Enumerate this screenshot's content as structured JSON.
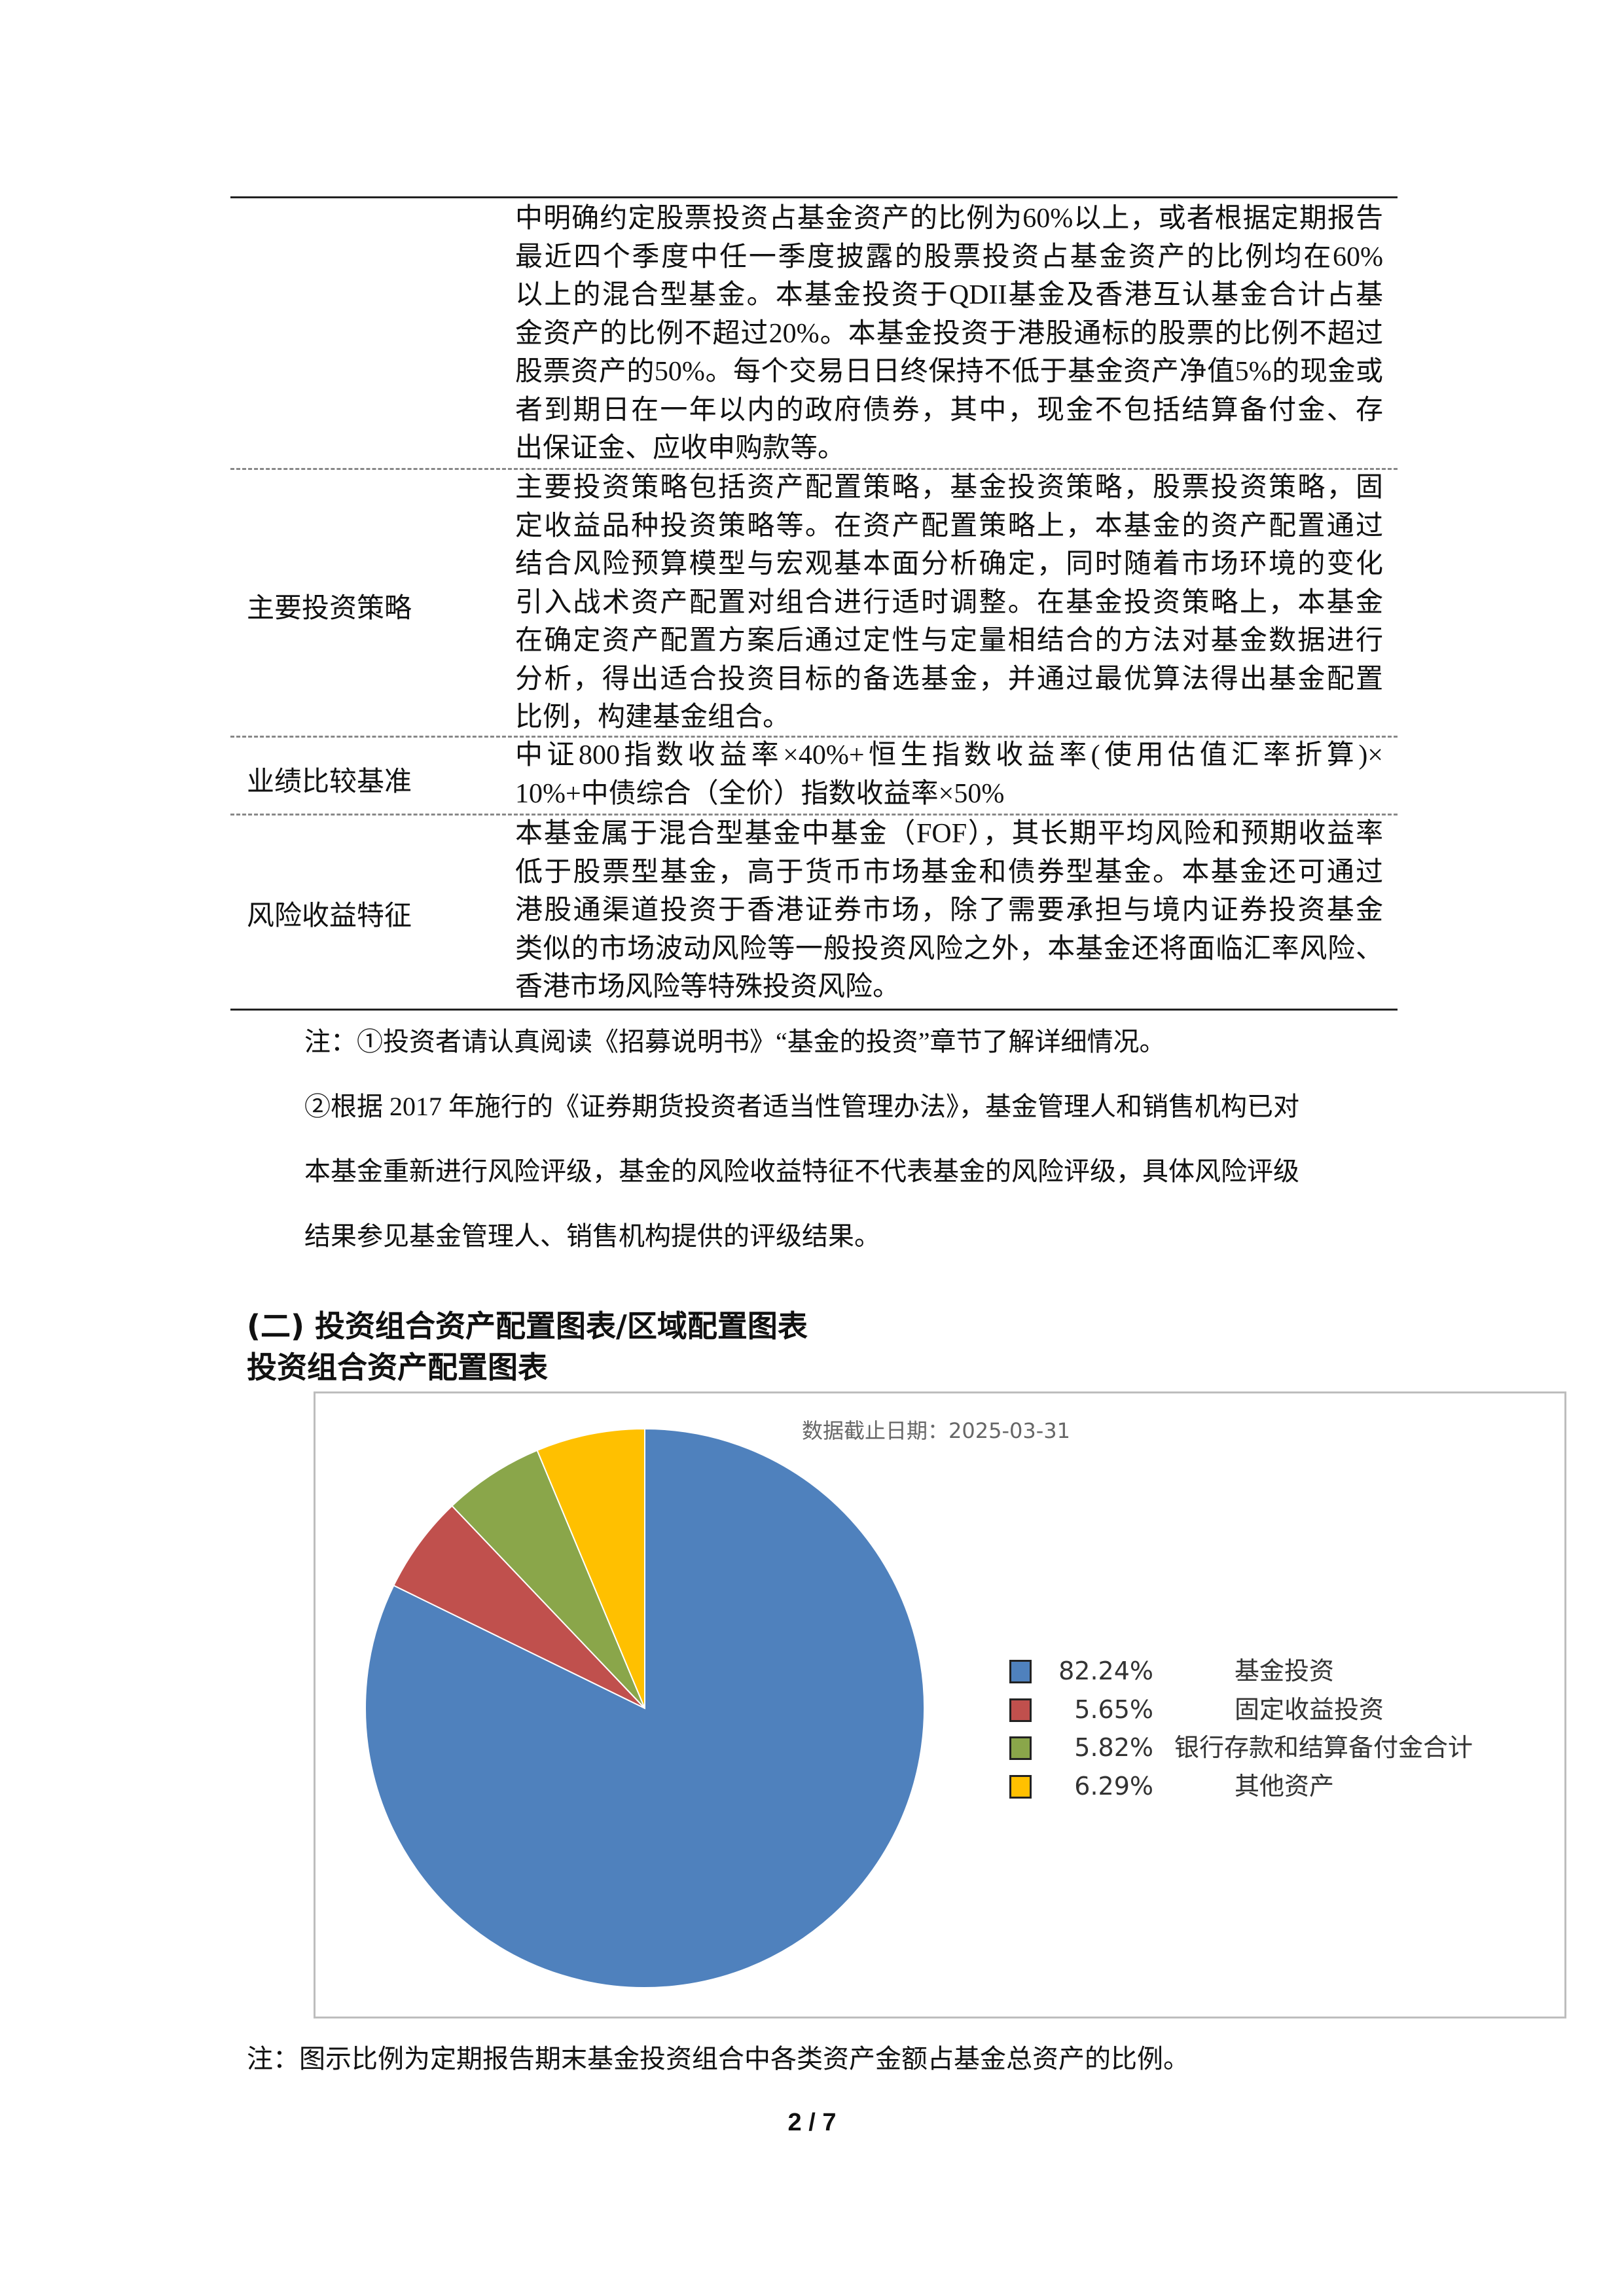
{
  "table": {
    "rows": [
      {
        "label": "",
        "lines": [
          "中明确约定股票投资占基金资产的比例为60%以上，或者根据定期报告",
          "最近四个季度中任一季度披露的股票投资占基金资产的比例均在60%",
          "以上的混合型基金。本基金投资于QDII基金及香港互认基金合计占基",
          "金资产的比例不超过20%。本基金投资于港股通标的股票的比例不超过",
          "股票资产的50%。每个交易日日终保持不低于基金资产净值5%的现金或",
          "者到期日在一年以内的政府债券，其中，现金不包括结算备付金、存",
          "出保证金、应收申购款等。"
        ]
      },
      {
        "label": "主要投资策略",
        "lines": [
          "主要投资策略包括资产配置策略，基金投资策略，股票投资策略，固",
          "定收益品种投资策略等。在资产配置策略上，本基金的资产配置通过",
          "结合风险预算模型与宏观基本面分析确定，同时随着市场环境的变化",
          "引入战术资产配置对组合进行适时调整。在基金投资策略上，本基金",
          "在确定资产配置方案后通过定性与定量相结合的方法对基金数据进行",
          "分析，得出适合投资目标的备选基金，并通过最优算法得出基金配置",
          "比例，构建基金组合。"
        ]
      },
      {
        "label": "业绩比较基准",
        "lines": [
          "中证800指数收益率×40%+恒生指数收益率(使用估值汇率折算)×",
          "10%+中债综合（全价）指数收益率×50%"
        ]
      },
      {
        "label": "风险收益特征",
        "lines": [
          "本基金属于混合型基金中基金（FOF），其长期平均风险和预期收益率",
          "低于股票型基金，高于货币市场基金和债券型基金。本基金还可通过",
          "港股通渠道投资于香港证券市场，除了需要承担与境内证券投资基金",
          "类似的市场波动风险等一般投资风险之外，本基金还将面临汇率风险、",
          "香港市场风险等特殊投资风险。"
        ]
      }
    ]
  },
  "notes": {
    "note1": "注：①投资者请认真阅读《招募说明书》“基金的投资”章节了解详细情况。",
    "note2_l1": "②根据 2017 年施行的《证券期货投资者适当性管理办法》，基金管理人和销售机构已对",
    "note2_l2": "本基金重新进行风险评级，基金的风险收益特征不代表基金的风险评级，具体风险评级",
    "note2_l3": "结果参见基金管理人、销售机构提供的评级结果。"
  },
  "section": {
    "heading": "(二) 投资组合资产配置图表/区域配置图表",
    "subheading": "投资组合资产配置图表"
  },
  "chart_data": {
    "type": "pie",
    "subtitle": "数据截止日期：2025-03-31",
    "legend_position": "right",
    "slices": [
      {
        "name": "基金投资",
        "value": 82.24,
        "label": "82.24%",
        "color": "#4f81bd"
      },
      {
        "name": "固定收益投资",
        "value": 5.65,
        "label": "5.65%",
        "color": "#c0504d"
      },
      {
        "name": "银行存款和结算备付金合计",
        "value": 5.82,
        "label": "5.82%",
        "color": "#8aa64a"
      },
      {
        "name": "其他资产",
        "value": 6.29,
        "label": "6.29%",
        "color": "#ffc000"
      }
    ]
  },
  "footnote": "注：图示比例为定期报告期末基金投资组合中各类资产金额占基金总资产的比例。",
  "page_number": "2 / 7"
}
